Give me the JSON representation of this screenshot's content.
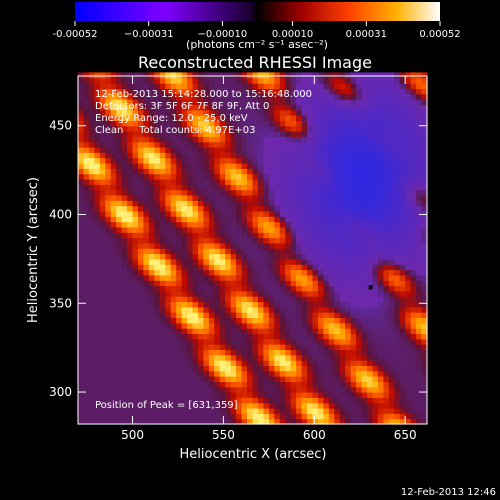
{
  "chart_data": {
    "type": "heatmap",
    "title": "Reconstructed RHESSI Image",
    "xlabel": "Heliocentric X (arcsec)",
    "ylabel": "Heliocentric Y (arcsec)",
    "xlim": [
      470,
      662
    ],
    "ylim": [
      282,
      478
    ],
    "xticks": [
      500,
      550,
      600,
      650
    ],
    "yticks": [
      300,
      350,
      400,
      450
    ],
    "colorbar": {
      "range": [
        -0.00052,
        0.00052
      ],
      "tick_values": [
        -0.00052,
        -0.00031,
        -0.0001,
        0.0001,
        0.00031,
        0.00052
      ],
      "tick_labels": [
        "-0.00052",
        "−0.00031",
        "−0.00010",
        "0.00010",
        "0.00031",
        "0.00052"
      ],
      "units_label": "(photons cm⁻² s⁻¹ asec⁻²)"
    },
    "annotations": [
      "12-Feb-2013 15:14:28.000 to 15:16:48.000",
      "Detectors: 3F 5F 6F 7F 8F 9F, Att 0",
      "Energy Range: 12.0 - 25.0 keV",
      "Clean     Total counts: 4.97E+03"
    ],
    "peak_label": "Position of Peak = [631,359]",
    "peak_position": [
      631,
      359
    ],
    "ridges": [
      {
        "x0": 448,
        "y0": 470,
        "slope": 1.55,
        "amp": 1.0
      },
      {
        "x0": 485,
        "y0": 470,
        "slope": 1.6,
        "amp": 0.95
      },
      {
        "x0": 525,
        "y0": 470,
        "slope": 1.6,
        "amp": 0.85
      },
      {
        "x0": 575,
        "y0": 470,
        "slope": 1.6,
        "amp": 0.8
      },
      {
        "x0": 615,
        "y0": 470,
        "slope": 1.55,
        "amp": 0.85
      },
      {
        "x0": 658,
        "y0": 470,
        "slope": 1.5,
        "amp": 0.7
      }
    ],
    "negative_region": {
      "center": [
        625,
        420
      ],
      "x_extent": 45,
      "y_extent": 60,
      "min": -0.00045
    },
    "colormap": "red temperature (blue negative)"
  },
  "footer": {
    "timestamp": "12-Feb-2013 12:46"
  }
}
